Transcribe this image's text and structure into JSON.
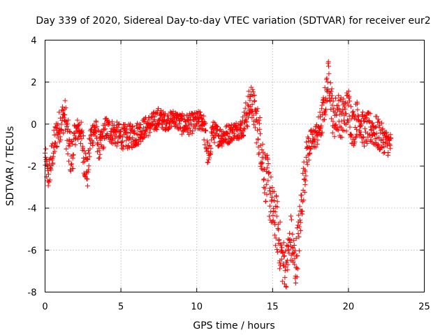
{
  "chart_data": {
    "type": "scatter",
    "title": "Day 339 of 2020, Sidereal Day-to-day VTEC variation (SDTVAR) for receiver eur2",
    "xlabel": "GPS time / hours",
    "ylabel": "SDTVAR / TECUs",
    "xlim": [
      0,
      25
    ],
    "ylim": [
      -8,
      4
    ],
    "xticks": [
      0,
      5,
      10,
      15,
      20,
      25
    ],
    "yticks": [
      -8,
      -6,
      -4,
      -2,
      0,
      2,
      4
    ],
    "grid": true,
    "marker": "+",
    "series": [
      {
        "name": "SDTVAR",
        "color": "#ff0000",
        "profile": [
          [
            0.0,
            -1.6,
            0.7
          ],
          [
            0.2,
            -2.6,
            0.6
          ],
          [
            0.4,
            -1.8,
            0.8
          ],
          [
            0.7,
            -0.6,
            0.8
          ],
          [
            1.0,
            0.0,
            0.8
          ],
          [
            1.3,
            0.5,
            0.8
          ],
          [
            1.5,
            -0.9,
            1.2
          ],
          [
            1.8,
            -1.6,
            1.0
          ],
          [
            2.0,
            -0.4,
            0.6
          ],
          [
            2.3,
            -0.2,
            0.6
          ],
          [
            2.6,
            -1.6,
            1.0
          ],
          [
            2.8,
            -2.4,
            0.7
          ],
          [
            3.0,
            -0.6,
            0.7
          ],
          [
            3.3,
            -0.2,
            0.6
          ],
          [
            3.6,
            -1.2,
            0.7
          ],
          [
            4.0,
            -0.2,
            0.6
          ],
          [
            4.5,
            -0.4,
            0.6
          ],
          [
            5.0,
            -0.6,
            0.6
          ],
          [
            5.5,
            -0.6,
            0.6
          ],
          [
            6.0,
            -0.5,
            0.6
          ],
          [
            6.5,
            -0.2,
            0.5
          ],
          [
            7.0,
            0.0,
            0.5
          ],
          [
            7.5,
            0.3,
            0.5
          ],
          [
            8.0,
            0.1,
            0.4
          ],
          [
            8.5,
            0.3,
            0.4
          ],
          [
            9.0,
            0.0,
            0.5
          ],
          [
            9.5,
            0.0,
            0.5
          ],
          [
            10.0,
            0.1,
            0.5
          ],
          [
            10.4,
            0.2,
            0.5
          ],
          [
            10.6,
            -0.8,
            0.8
          ],
          [
            10.8,
            -1.8,
            0.5
          ],
          [
            11.0,
            -0.3,
            0.5
          ],
          [
            11.5,
            -0.6,
            0.5
          ],
          [
            12.0,
            -0.5,
            0.5
          ],
          [
            12.5,
            -0.3,
            0.4
          ],
          [
            13.0,
            -0.2,
            0.5
          ],
          [
            13.3,
            0.5,
            0.8
          ],
          [
            13.6,
            1.2,
            0.8
          ],
          [
            13.9,
            0.2,
            1.0
          ],
          [
            14.2,
            -0.8,
            1.2
          ],
          [
            14.5,
            -2.4,
            1.2
          ],
          [
            14.8,
            -3.2,
            1.4
          ],
          [
            15.0,
            -4.2,
            1.2
          ],
          [
            15.3,
            -4.8,
            1.4
          ],
          [
            15.6,
            -6.4,
            1.2
          ],
          [
            15.9,
            -6.8,
            1.0
          ],
          [
            16.2,
            -5.4,
            1.2
          ],
          [
            16.5,
            -6.8,
            1.2
          ],
          [
            16.8,
            -4.8,
            1.2
          ],
          [
            17.0,
            -3.0,
            1.0
          ],
          [
            17.3,
            -1.2,
            0.8
          ],
          [
            17.6,
            -0.8,
            0.6
          ],
          [
            17.9,
            -0.5,
            0.6
          ],
          [
            18.2,
            0.0,
            0.8
          ],
          [
            18.5,
            1.2,
            0.8
          ],
          [
            18.7,
            2.4,
            0.8
          ],
          [
            19.0,
            0.2,
            1.0
          ],
          [
            19.3,
            0.6,
            1.0
          ],
          [
            19.6,
            0.2,
            1.0
          ],
          [
            20.0,
            0.8,
            1.0
          ],
          [
            20.3,
            -0.2,
            1.0
          ],
          [
            20.6,
            0.4,
            0.8
          ],
          [
            21.0,
            -0.3,
            0.8
          ],
          [
            21.5,
            -0.2,
            0.8
          ],
          [
            22.0,
            -0.5,
            0.8
          ],
          [
            22.4,
            -0.8,
            0.6
          ],
          [
            22.8,
            -1.0,
            0.6
          ]
        ]
      }
    ]
  }
}
